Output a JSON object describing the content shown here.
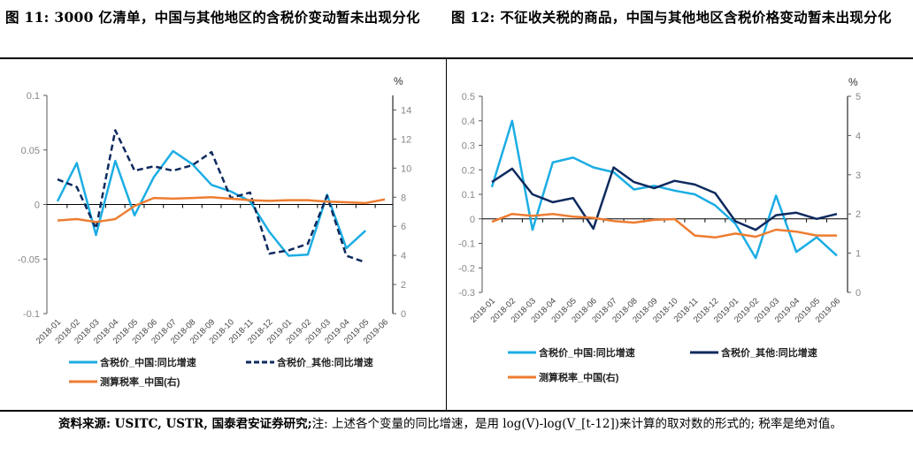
{
  "figure11": {
    "title": "图 11: 3000 亿清单，中国与其他地区的含税价变动暂未出现分化"
  },
  "figure12": {
    "title": "图 12: 不征收关税的商品，中国与其他地区含税价格变动暂未出现分化"
  },
  "footnote": {
    "source": "资料来源: USITC, USTR, 国泰君安证券研究;",
    "note": "注: 上述各个变量的同比增速，是用 log(V)-log(V_[t-12])来计算的取对数的形式的; 税率是绝对值。"
  },
  "colors": {
    "china": "#1CADE4",
    "other": "#0E2A5E",
    "tax": "#ED7D31"
  },
  "chart_data": [
    {
      "type": "line",
      "categories": [
        "2018-01",
        "2018-02",
        "2018-03",
        "2018-04",
        "2018-05",
        "2018-06",
        "2018-07",
        "2018-08",
        "2018-09",
        "2018-10",
        "2018-11",
        "2018-12",
        "2019-01",
        "2019-02",
        "2019-03",
        "2019-04",
        "2019-05",
        "2019-06"
      ],
      "ylim": [
        -0.1,
        0.1
      ],
      "yticks": [
        "0.1",
        "0.05",
        "0",
        "-0.05",
        "-0.1"
      ],
      "y2lim": [
        0,
        15
      ],
      "y2ticks": [
        "14",
        "12",
        "10",
        "8",
        "6",
        "4",
        "2",
        "0"
      ],
      "y2label": "%",
      "series": [
        {
          "name": "含税价_中国:同比增速",
          "axis": "left",
          "style": "solid",
          "color": "#1CADE4",
          "values": [
            0.003,
            0.038,
            -0.028,
            0.04,
            -0.01,
            0.025,
            0.049,
            0.037,
            0.018,
            0.012,
            0.003,
            -0.025,
            -0.047,
            -0.046,
            0.009,
            -0.04,
            -0.024,
            null
          ]
        },
        {
          "name": "含税价_其他:同比增速",
          "axis": "left",
          "style": "dashed",
          "color": "#0E2A5E",
          "values": [
            0.023,
            0.016,
            -0.022,
            0.068,
            0.031,
            0.035,
            0.031,
            0.036,
            0.048,
            0.006,
            0.011,
            -0.045,
            -0.042,
            -0.036,
            0.008,
            -0.047,
            -0.053,
            null
          ]
        },
        {
          "name": "测算税率_中国(右)",
          "axis": "right",
          "style": "solid",
          "color": "#ED7D31",
          "values": [
            6.4,
            6.5,
            6.3,
            6.5,
            7.4,
            7.95,
            7.9,
            7.95,
            8.0,
            7.9,
            7.8,
            7.75,
            7.8,
            7.8,
            7.7,
            7.65,
            7.6,
            7.85
          ]
        }
      ]
    },
    {
      "type": "line",
      "categories": [
        "2018-01",
        "2018-02",
        "2018-03",
        "2018-04",
        "2018-05",
        "2018-06",
        "2018-07",
        "2018-08",
        "2018-09",
        "2018-10",
        "2018-11",
        "2018-12",
        "2019-01",
        "2019-02",
        "2019-03",
        "2019-04",
        "2019-05",
        "2019-06"
      ],
      "ylim": [
        -0.3,
        0.5
      ],
      "yticks": [
        "0.5",
        "0.4",
        "0.3",
        "0.2",
        "0.1",
        "0",
        "-0.1",
        "-0.2",
        "-0.3"
      ],
      "y2lim": [
        0,
        5
      ],
      "y2ticks": [
        "5",
        "4",
        "3",
        "2",
        "1",
        "0"
      ],
      "y2label": "%",
      "series": [
        {
          "name": "含税价_中国:同比增速",
          "axis": "left",
          "style": "solid",
          "color": "#1CADE4",
          "values": [
            0.13,
            0.4,
            -0.045,
            0.23,
            0.25,
            0.21,
            0.19,
            0.12,
            0.135,
            0.115,
            0.1,
            0.055,
            -0.02,
            -0.16,
            0.095,
            -0.135,
            -0.075,
            -0.15
          ]
        },
        {
          "name": "含税价_其他:同比增速",
          "axis": "left",
          "style": "solid",
          "color": "#0E2A5E",
          "values": [
            0.15,
            0.205,
            0.1,
            0.068,
            0.085,
            -0.04,
            0.21,
            0.15,
            0.125,
            0.155,
            0.14,
            0.105,
            -0.01,
            -0.045,
            0.015,
            0.025,
            0.0,
            0.02
          ]
        },
        {
          "name": "测算税率_中国(右)",
          "axis": "right",
          "style": "solid",
          "color": "#ED7D31",
          "values": [
            1.8,
            2.0,
            1.95,
            2.0,
            1.93,
            1.9,
            1.82,
            1.78,
            1.85,
            1.87,
            1.45,
            1.4,
            1.5,
            1.42,
            1.6,
            1.55,
            1.45,
            1.45
          ]
        }
      ]
    }
  ]
}
